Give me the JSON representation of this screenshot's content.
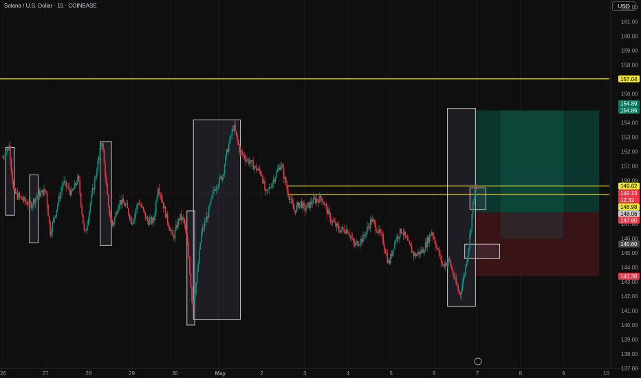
{
  "header": {
    "title": "Solana / U.S. Dollar · 15 · COINBASE",
    "currency": "USD"
  },
  "chart_data": {
    "type": "candlestick",
    "ylim": [
      137,
      162.5
    ],
    "y_ticks": [
      "162.00",
      "161.00",
      "160.00",
      "159.00",
      "158.00",
      "157.00",
      "156.00",
      "155.00",
      "154.00",
      "153.00",
      "152.00",
      "151.00",
      "150.00",
      "149.00",
      "148.00",
      "147.00",
      "146.00",
      "145.00",
      "144.00",
      "143.00",
      "142.00",
      "141.00",
      "140.00",
      "139.00",
      "138.00",
      "137.00"
    ],
    "x_ticks": [
      {
        "label": "26",
        "x": 0.0
      },
      {
        "label": "27",
        "x": 1.0
      },
      {
        "label": "28",
        "x": 2.0
      },
      {
        "label": "29",
        "x": 3.0
      },
      {
        "label": "30",
        "x": 4.0
      },
      {
        "label": "May",
        "x": 5.0
      },
      {
        "label": "2",
        "x": 6.0
      },
      {
        "label": "3",
        "x": 7.0
      },
      {
        "label": "4",
        "x": 8.0
      },
      {
        "label": "5",
        "x": 9.0
      },
      {
        "label": "6",
        "x": 10.0
      },
      {
        "label": "7",
        "x": 11.0
      },
      {
        "label": "8",
        "x": 12.0
      },
      {
        "label": "9",
        "x": 13.0
      },
      {
        "label": "10",
        "x": 14.0
      }
    ],
    "x_range": [
      0,
      14.0
    ],
    "price_path": [
      [
        0.0,
        151.6
      ],
      [
        0.15,
        152.4
      ],
      [
        0.25,
        149.2
      ],
      [
        0.45,
        148.7
      ],
      [
        0.65,
        148.3
      ],
      [
        0.8,
        149.0
      ],
      [
        1.0,
        149.3
      ],
      [
        1.1,
        146.4
      ],
      [
        1.25,
        148.1
      ],
      [
        1.4,
        149.9
      ],
      [
        1.6,
        149.1
      ],
      [
        1.75,
        150.2
      ],
      [
        1.9,
        146.1
      ],
      [
        2.05,
        148.7
      ],
      [
        2.2,
        151.1
      ],
      [
        2.3,
        152.9
      ],
      [
        2.45,
        148.0
      ],
      [
        2.55,
        146.9
      ],
      [
        2.7,
        148.6
      ],
      [
        2.85,
        148.3
      ],
      [
        3.0,
        147.1
      ],
      [
        3.15,
        148.6
      ],
      [
        3.35,
        147.2
      ],
      [
        3.5,
        147.2
      ],
      [
        3.6,
        149.7
      ],
      [
        3.8,
        147.4
      ],
      [
        3.95,
        146.0
      ],
      [
        4.1,
        147.5
      ],
      [
        4.2,
        147.2
      ],
      [
        4.3,
        145.2
      ],
      [
        4.4,
        141.2
      ],
      [
        4.5,
        143.3
      ],
      [
        4.6,
        146.3
      ],
      [
        4.75,
        147.6
      ],
      [
        4.9,
        149.4
      ],
      [
        5.1,
        150.4
      ],
      [
        5.2,
        152.0
      ],
      [
        5.35,
        153.8
      ],
      [
        5.5,
        152.0
      ],
      [
        5.65,
        151.5
      ],
      [
        5.85,
        150.9
      ],
      [
        6.0,
        150.5
      ],
      [
        6.1,
        149.0
      ],
      [
        6.25,
        149.9
      ],
      [
        6.45,
        151.2
      ],
      [
        6.6,
        149.3
      ],
      [
        6.75,
        147.9
      ],
      [
        6.9,
        148.5
      ],
      [
        7.0,
        148.0
      ],
      [
        7.2,
        148.6
      ],
      [
        7.4,
        148.8
      ],
      [
        7.6,
        147.3
      ],
      [
        7.8,
        146.6
      ],
      [
        8.0,
        146.6
      ],
      [
        8.15,
        145.5
      ],
      [
        8.35,
        146.0
      ],
      [
        8.55,
        147.3
      ],
      [
        8.8,
        146.0
      ],
      [
        8.95,
        144.2
      ],
      [
        9.1,
        145.9
      ],
      [
        9.25,
        146.6
      ],
      [
        9.4,
        145.6
      ],
      [
        9.55,
        144.8
      ],
      [
        9.75,
        145.2
      ],
      [
        9.95,
        146.5
      ],
      [
        10.05,
        145.5
      ],
      [
        10.2,
        144.1
      ],
      [
        10.35,
        144.5
      ],
      [
        10.5,
        142.9
      ],
      [
        10.6,
        142.1
      ],
      [
        10.7,
        143.5
      ],
      [
        10.8,
        145.3
      ],
      [
        10.9,
        148.3
      ],
      [
        10.95,
        149.5
      ],
      [
        11.0,
        149.13
      ]
    ],
    "horizontal_lines": [
      {
        "price": 157.04,
        "color": "#f0e630"
      },
      {
        "price": 149.62,
        "color": "#f0e630"
      },
      {
        "price": 149.02,
        "color": "#f0e630"
      }
    ],
    "zones": [
      {
        "x0": 0.07,
        "x1": 0.27,
        "p0": 147.6,
        "p1": 152.3
      },
      {
        "x0": 0.62,
        "x1": 0.82,
        "p0": 145.7,
        "p1": 150.4
      },
      {
        "x0": 2.26,
        "x1": 2.52,
        "p0": 145.5,
        "p1": 152.7
      },
      {
        "x0": 4.27,
        "x1": 4.45,
        "p0": 140.0,
        "p1": 147.9
      },
      {
        "x0": 4.42,
        "x1": 5.51,
        "p0": 140.4,
        "p1": 154.2
      },
      {
        "x0": 10.31,
        "x1": 10.96,
        "p0": 141.3,
        "p1": 155.0
      },
      {
        "x0": 10.83,
        "x1": 11.2,
        "p0": 148.0,
        "p1": 149.5
      },
      {
        "x0": 10.71,
        "x1": 11.52,
        "p0": 144.6,
        "p1": 145.6
      }
    ],
    "position": {
      "x0": 10.95,
      "x1": 13.83,
      "entry": 147.8,
      "target": 154.86,
      "stop": 143.38,
      "profit_color": "#0b3d33",
      "loss_color": "#3d1518"
    },
    "price_labels": [
      {
        "text": "157.04",
        "price": 157.04,
        "bg": "#f0e630",
        "fg": "#000000"
      },
      {
        "text": "154.89",
        "price": 155.33,
        "bg": "#0a7a5f",
        "fg": "#ffffff"
      },
      {
        "text": "154.86",
        "price": 154.86,
        "bg": "#0a7a5f",
        "fg": "#ffffff"
      },
      {
        "text": "149.62",
        "price": 149.62,
        "bg": "#f0e630",
        "fg": "#000000"
      },
      {
        "text": "149.13",
        "price": 149.13,
        "bg": "#f23645",
        "fg": "#ffffff"
      },
      {
        "text": "12:32",
        "price": 148.66,
        "bg": "#f23645",
        "fg": "#ffffff"
      },
      {
        "text": "148.98",
        "price": 148.18,
        "bg": "#f0e630",
        "fg": "#000000"
      },
      {
        "text": "148.06",
        "price": 147.7,
        "bg": "#c9c9c9",
        "fg": "#000000"
      },
      {
        "text": "147.80",
        "price": 147.25,
        "bg": "#f23645",
        "fg": "#ffffff"
      },
      {
        "text": "145.60",
        "price": 145.6,
        "bg": "#4a4a4a",
        "fg": "#ffffff"
      },
      {
        "text": "143.38",
        "price": 143.38,
        "bg": "#f23645",
        "fg": "#ffffff"
      }
    ]
  },
  "colors": {
    "background": "#0f0f0f",
    "up": "#089981",
    "down": "#f23645",
    "axis_text": "#9598a1",
    "zone_border": "#c8c8c8",
    "zone_fill": "rgba(120,123,160,0.14)"
  }
}
